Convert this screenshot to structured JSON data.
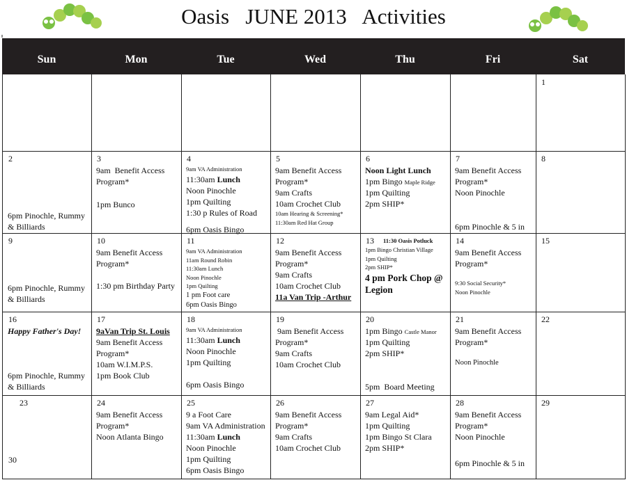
{
  "title": "Oasis   JUNE 2013   Activities",
  "days": [
    "Sun",
    "Mon",
    "Tue",
    "Wed",
    "Thu",
    "Fri",
    "Sat"
  ],
  "weeks": [
    {
      "cells": [
        {},
        {},
        {},
        {},
        {},
        {},
        {
          "date": "1"
        }
      ]
    },
    {
      "cells": [
        {
          "date": "2",
          "lines": [
            "6pm Pinochle, Rummy",
            "& Billiards"
          ]
        },
        {
          "date": "3",
          "lines": [
            "9am  Benefit Access",
            "Program*",
            "1pm Bunco"
          ]
        },
        {
          "date": "4",
          "lines": [
            "9am VA Administration",
            [
              "11:30am",
              "Lunch"
            ],
            "Noon Pinochle",
            "1pm Quilting",
            "1:30 p Rules of Road",
            "6pm Oasis Bingo"
          ]
        },
        {
          "date": "5",
          "lines": [
            "9am Benefit Access",
            "Program*",
            "9am Crafts",
            "10am Crochet Club",
            "10am Hearing & Screening*",
            "11:30am Red Hat Group"
          ]
        },
        {
          "date": "6",
          "lines": [
            "Noon Light Lunch",
            [
              "1pm Bingo",
              "Maple Ridge"
            ],
            "1pm Quilting",
            "2pm SHIP*"
          ]
        },
        {
          "date": "7",
          "lines": [
            "9am Benefit Access",
            "Program*",
            "Noon Pinochle",
            "6pm Pinochle & 5 in"
          ]
        },
        {
          "date": "8"
        }
      ]
    },
    {
      "cells": [
        {
          "date": "9",
          "lines": [
            "6pm Pinochle, Rummy",
            "& Billiards"
          ]
        },
        {
          "date": "10",
          "lines": [
            "9am Benefit Access",
            "Program*",
            "1:30 pm Birthday Party"
          ]
        },
        {
          "date": "11",
          "lines": [
            "9am VA Administration",
            "11am Round Robin",
            [
              "11:30am",
              "Lunch"
            ],
            "Noon Pinochle",
            "1pm Quilting",
            "1 pm Foot care",
            "6pm Oasis Bingo"
          ]
        },
        {
          "date": "12",
          "lines": [
            "9am Benefit Access",
            "Program*",
            "9am Crafts",
            "10am Crochet Club",
            "11a Van Trip -Arthur"
          ]
        },
        {
          "date": "13",
          "lines": [
            "11:30 Oasis Potluck",
            "1pm Bingo Christian Village",
            "1pm Quilting",
            "2pm SHIP*",
            "4 pm Pork Chop @",
            "Legion"
          ]
        },
        {
          "date": "14",
          "lines": [
            "9am Benefit Access",
            "Program*",
            "9:30 Social Security*",
            "Noon Pinochle"
          ]
        },
        {
          "date": "15"
        }
      ]
    },
    {
      "cells": [
        {
          "date": "16",
          "lines": [
            "Happy Father's Day!",
            "6pm Pinochle, Rummy",
            "& Billiards"
          ]
        },
        {
          "date": "17",
          "lines": [
            "9aVan Trip St. Louis",
            "9am Benefit Access",
            "Program*",
            "10am W.I.M.P.S.",
            "1pm Book Club"
          ]
        },
        {
          "date": "18",
          "lines": [
            "9am VA Administration",
            [
              "11:30am",
              "Lunch"
            ],
            "Noon Pinochle",
            "1pm Quilting",
            "6pm Oasis Bingo"
          ]
        },
        {
          "date": "19",
          "lines": [
            " 9am Benefit Access",
            "Program*",
            "9am Crafts",
            "10am Crochet Club"
          ]
        },
        {
          "date": "20",
          "lines": [
            [
              "1pm Bingo",
              "Castle Manor"
            ],
            "1pm Quilting",
            "2pm SHIP*",
            "5pm  Board Meeting"
          ]
        },
        {
          "date": "21",
          "lines": [
            "9am Benefit Access",
            "Program*",
            "Noon Pinochle"
          ]
        },
        {
          "date": "22"
        }
      ]
    },
    {
      "cells": [
        {
          "date": "23",
          "date2": "30"
        },
        {
          "date": "24",
          "lines": [
            "9am Benefit Access",
            "Program*",
            "Noon Atlanta Bingo"
          ]
        },
        {
          "date": "25",
          "lines": [
            "9 a Foot Care",
            "9am VA Administration",
            [
              "11:30am",
              "Lunch"
            ],
            "Noon Pinochle",
            "1pm Quilting",
            "6pm Oasis Bingo"
          ]
        },
        {
          "date": "26",
          "lines": [
            "9am Benefit Access",
            "Program*",
            "9am Crafts",
            "10am Crochet Club"
          ]
        },
        {
          "date": "27",
          "lines": [
            "9am Legal Aid*",
            "1pm Quilting",
            "1pm Bingo St Clara",
            "2pm SHIP*"
          ]
        },
        {
          "date": "28",
          "lines": [
            "9am Benefit Access",
            "Program*",
            "Noon Pinochle",
            "6pm Pinochle & 5 in"
          ]
        },
        {
          "date": "29"
        }
      ]
    }
  ]
}
